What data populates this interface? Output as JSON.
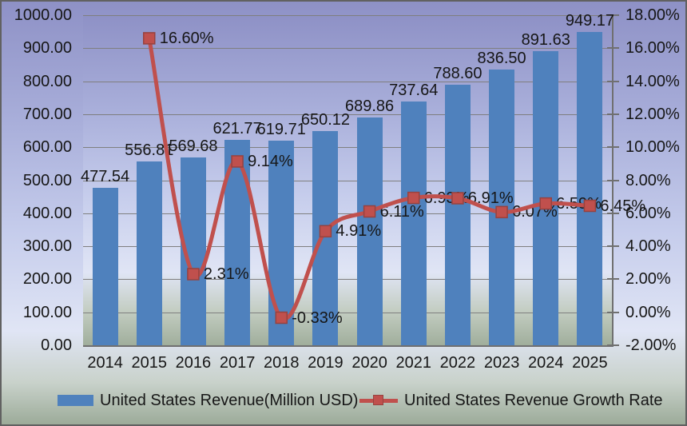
{
  "chart_data": {
    "type": "combo",
    "categories": [
      "2014",
      "2015",
      "2016",
      "2017",
      "2018",
      "2019",
      "2020",
      "2021",
      "2022",
      "2023",
      "2024",
      "2025"
    ],
    "series": [
      {
        "name": "United States Revenue(Million USD)",
        "type": "bar",
        "color": "#4f81bd",
        "values": [
          477.54,
          556.81,
          569.68,
          621.77,
          619.71,
          650.12,
          689.86,
          737.64,
          788.6,
          836.5,
          891.63,
          949.17
        ],
        "labels": [
          "477.54",
          "556.81",
          "569.68",
          "621.77",
          "619.71",
          "650.12",
          "689.86",
          "737.64",
          "788.60",
          "836.50",
          "891.63",
          "949.17"
        ]
      },
      {
        "name": "United States Revenue Growth Rate",
        "type": "line",
        "color": "#c0504d",
        "marker_border": "#97423f",
        "values": [
          null,
          16.6,
          2.31,
          9.14,
          -0.33,
          4.91,
          6.11,
          6.93,
          6.91,
          6.07,
          6.59,
          6.45
        ],
        "labels": [
          null,
          "16.60%",
          "2.31%",
          "9.14%",
          "-0.33%",
          "4.91%",
          "6.11%",
          "6.93%",
          "6.91%",
          "6.07%",
          "6.59%",
          "6.45%"
        ]
      }
    ],
    "axes": {
      "left": {
        "min": 0,
        "max": 1000,
        "ticks": [
          "1000.00",
          "900.00",
          "800.00",
          "700.00",
          "600.00",
          "500.00",
          "400.00",
          "300.00",
          "200.00",
          "100.00",
          "0.00"
        ]
      },
      "right": {
        "min": -2,
        "max": 18,
        "ticks": [
          "18.00%",
          "16.00%",
          "14.00%",
          "12.00%",
          "10.00%",
          "8.00%",
          "6.00%",
          "4.00%",
          "2.00%",
          "0.00%",
          "-2.00%"
        ]
      }
    },
    "grid": true,
    "legend_position": "bottom"
  },
  "colors": {
    "bar": "#4f81bd",
    "line": "#c0504d",
    "gridline": "#7f7f7f",
    "text": "#161616"
  }
}
